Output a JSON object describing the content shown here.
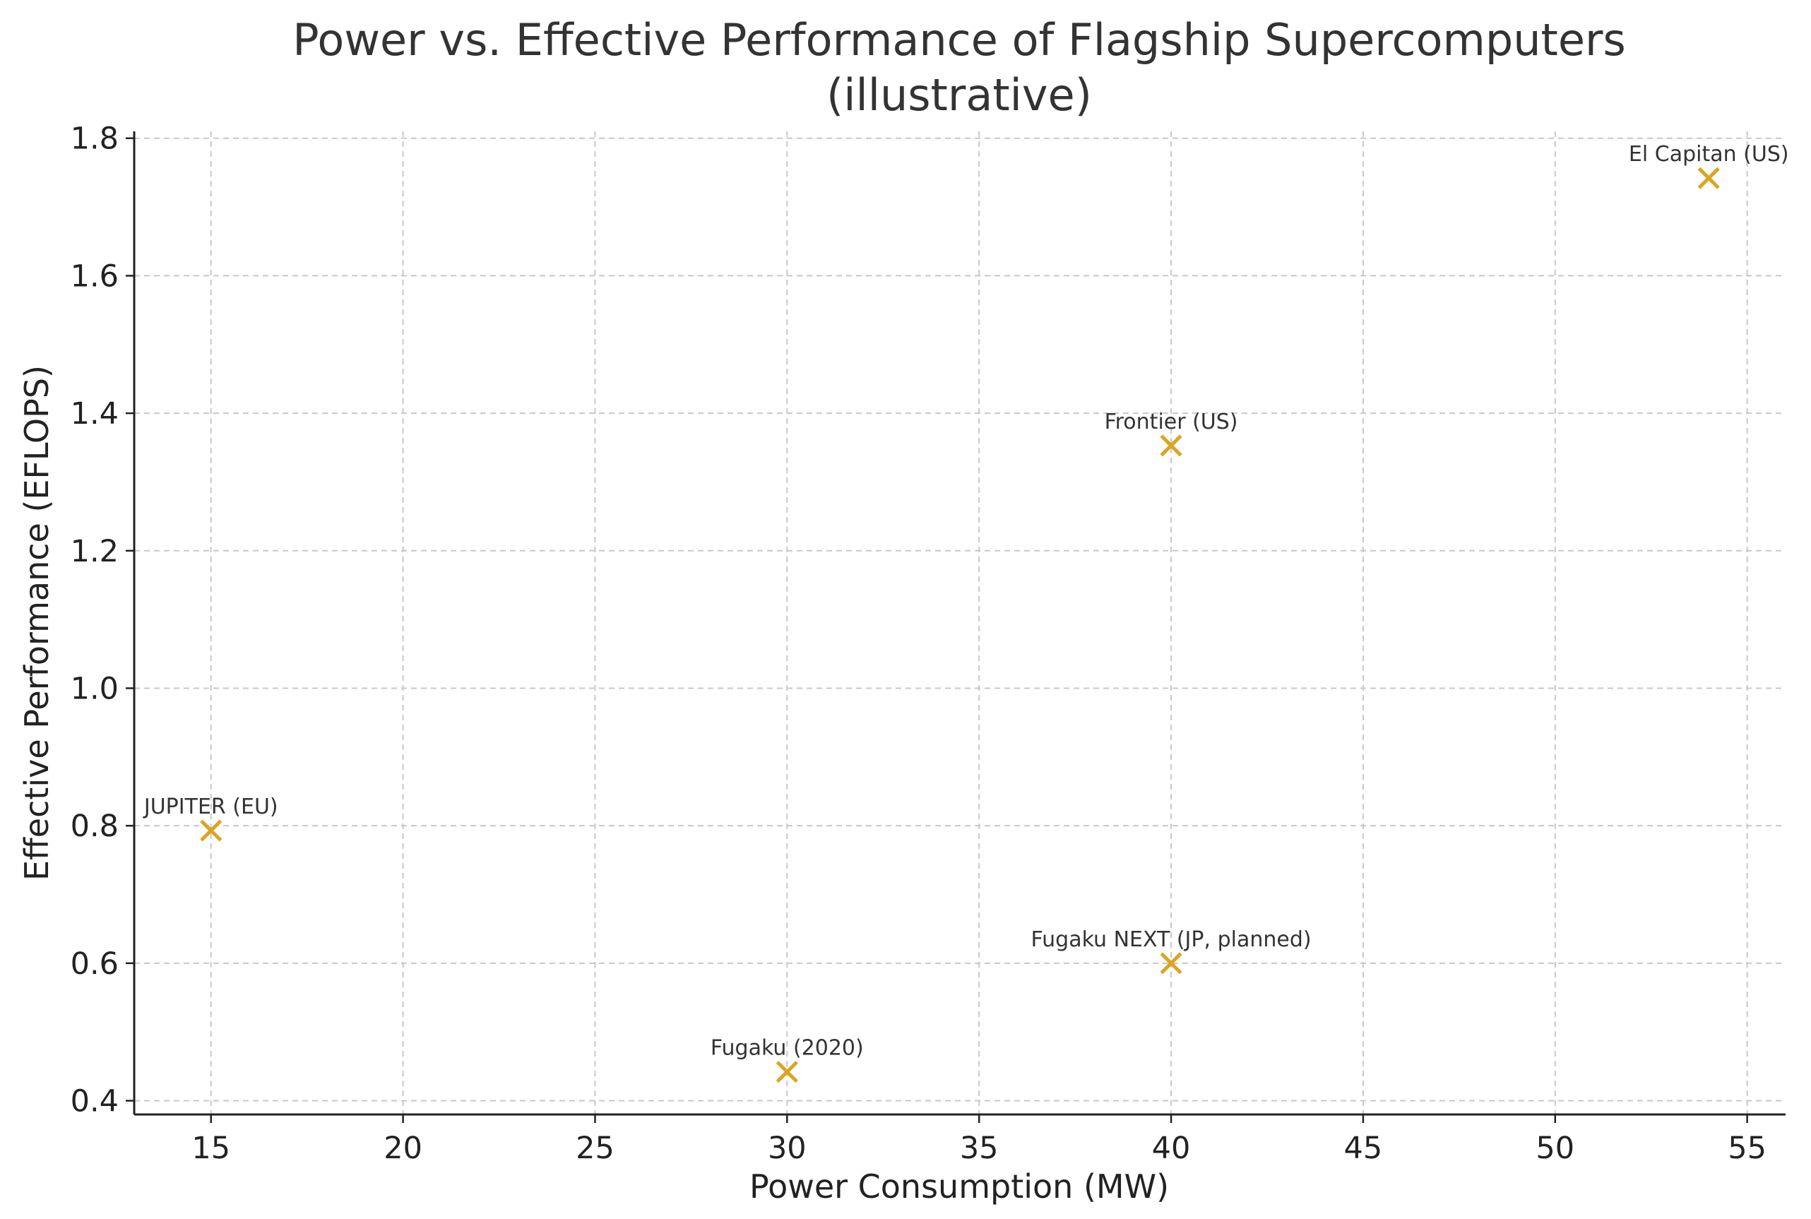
{
  "chart_data": {
    "type": "scatter",
    "title": "Power vs. Effective Performance of Flagship Supercomputers",
    "subtitle": "(illustrative)",
    "xlabel": "Power Consumption (MW)",
    "ylabel": "Effective Performance (EFLOPS)",
    "xlim": [
      13,
      56
    ],
    "ylim": [
      0.38,
      1.81
    ],
    "xticks": [
      15,
      20,
      25,
      30,
      35,
      40,
      45,
      50,
      55
    ],
    "xtick_labels": [
      "15",
      "20",
      "25",
      "30",
      "35",
      "40",
      "45",
      "50",
      "55"
    ],
    "yticks": [
      0.4,
      0.6,
      0.8,
      1.0,
      1.2,
      1.4,
      1.6,
      1.8
    ],
    "ytick_labels": [
      "0.4",
      "0.6",
      "0.8",
      "1.0",
      "1.2",
      "1.4",
      "1.6",
      "1.8"
    ],
    "grid": true,
    "marker": "x",
    "marker_color": "#DAA520",
    "points": [
      {
        "label": "JUPITER (EU)",
        "x": 15,
        "y": 0.793
      },
      {
        "label": "Fugaku (2020)",
        "x": 30,
        "y": 0.442
      },
      {
        "label": "Frontier (US)",
        "x": 40,
        "y": 1.353
      },
      {
        "label": "Fugaku NEXT (JP, planned)",
        "x": 40,
        "y": 0.6
      },
      {
        "label": "El Capitan (US)",
        "x": 54,
        "y": 1.742
      }
    ]
  }
}
